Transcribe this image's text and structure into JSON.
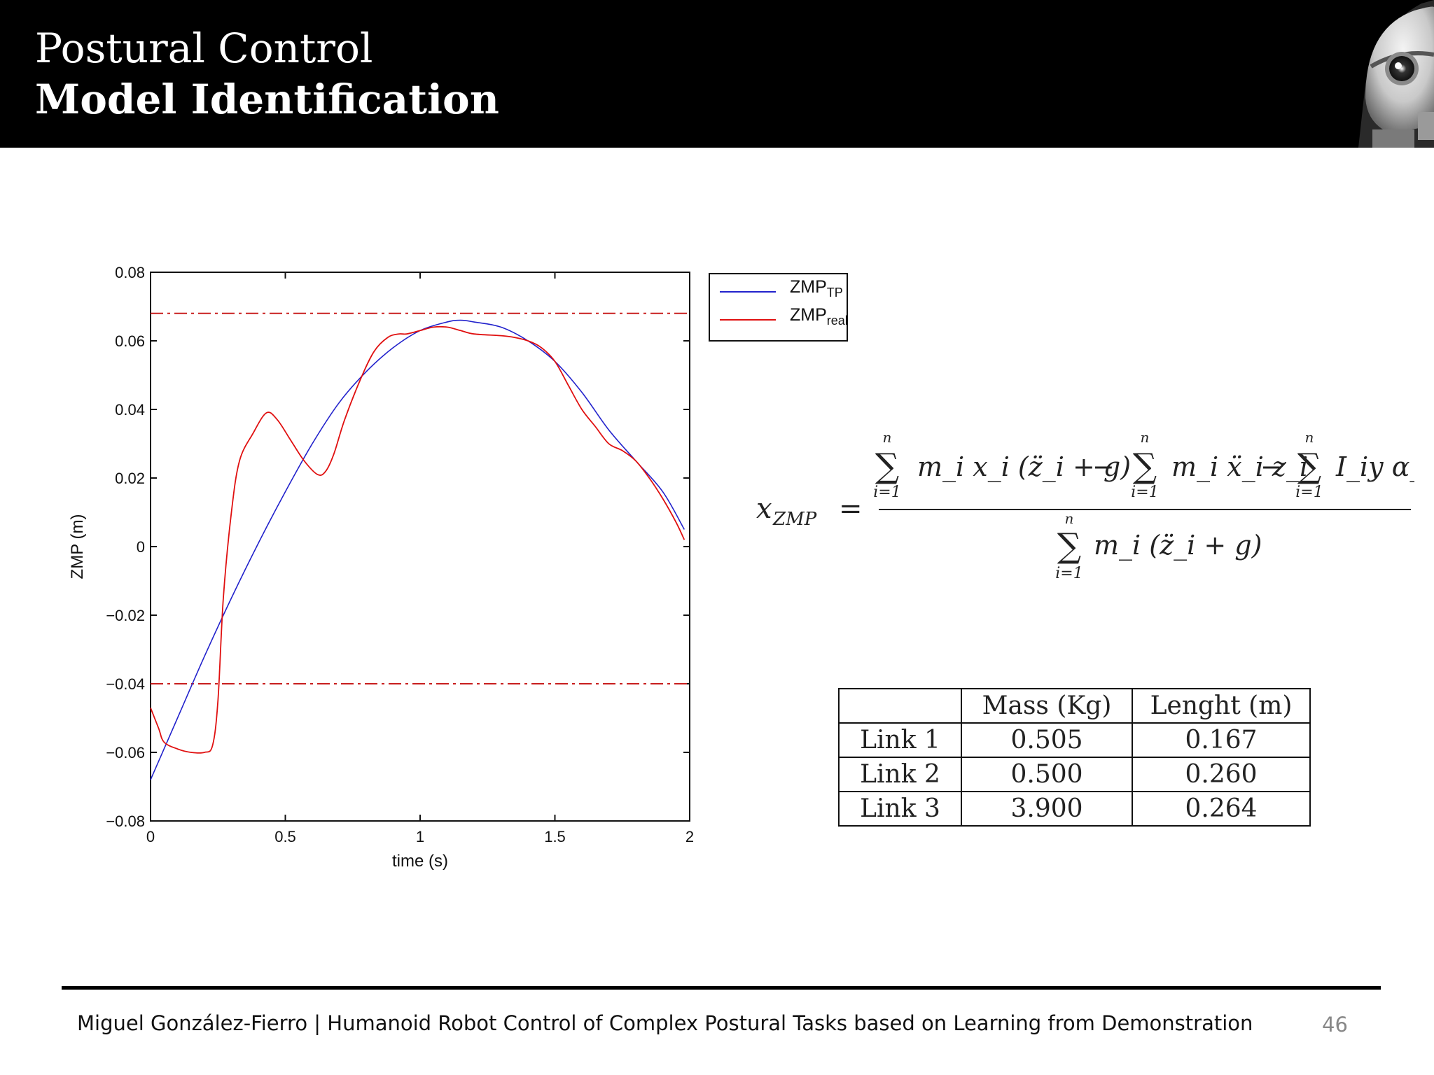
{
  "slide": {
    "title": "Postural Control",
    "subtitle": "Model Identification",
    "page_number": "46"
  },
  "footer": {
    "author": "Miguel González-Fierro",
    "separator": "|",
    "thesis_title": "Humanoid Robot Control of Complex Postural Tasks based on Learning from Demonstration"
  },
  "chart_data": {
    "type": "line",
    "xlabel": "time (s)",
    "ylabel": "ZMP (m)",
    "xlim": [
      0,
      2
    ],
    "ylim": [
      -0.08,
      0.08
    ],
    "x_ticks": [
      "0",
      "0.5",
      "1",
      "1.5",
      "2"
    ],
    "y_ticks": [
      "0.08",
      "0.06",
      "0.04",
      "0.02",
      "0",
      "−0.02",
      "−0.04",
      "−0.06",
      "−0.08"
    ],
    "grid": false,
    "legend_position": "outside top-right",
    "legend": [
      {
        "name": "ZMP",
        "subscript": "TP",
        "color": "#2222cc"
      },
      {
        "name": "ZMP",
        "subscript": "real",
        "color": "#e01010"
      }
    ],
    "series": [
      {
        "name": "ZMP_TP",
        "color": "#2222cc",
        "x": [
          0,
          0.1,
          0.2,
          0.3,
          0.4,
          0.5,
          0.6,
          0.7,
          0.8,
          0.9,
          1.0,
          1.1,
          1.15,
          1.2,
          1.3,
          1.4,
          1.5,
          1.6,
          1.7,
          1.8,
          1.9,
          1.98
        ],
        "y": [
          -0.068,
          -0.05,
          -0.032,
          -0.015,
          0.001,
          0.016,
          0.03,
          0.042,
          0.051,
          0.058,
          0.063,
          0.0655,
          0.066,
          0.0655,
          0.064,
          0.06,
          0.054,
          0.045,
          0.034,
          0.025,
          0.016,
          0.005
        ]
      },
      {
        "name": "ZMP_real",
        "color": "#e01010",
        "x": [
          0,
          0.03,
          0.05,
          0.1,
          0.15,
          0.2,
          0.23,
          0.25,
          0.27,
          0.3,
          0.33,
          0.38,
          0.43,
          0.47,
          0.52,
          0.57,
          0.62,
          0.65,
          0.68,
          0.72,
          0.78,
          0.83,
          0.88,
          0.92,
          0.95,
          1.0,
          1.05,
          1.1,
          1.15,
          1.2,
          1.3,
          1.35,
          1.4,
          1.45,
          1.5,
          1.55,
          1.6,
          1.65,
          1.7,
          1.75,
          1.8,
          1.85,
          1.9,
          1.95,
          1.98
        ],
        "y": [
          -0.047,
          -0.053,
          -0.057,
          -0.059,
          -0.06,
          -0.06,
          -0.058,
          -0.045,
          -0.015,
          0.01,
          0.025,
          0.033,
          0.039,
          0.037,
          0.031,
          0.025,
          0.021,
          0.022,
          0.027,
          0.037,
          0.049,
          0.057,
          0.061,
          0.062,
          0.062,
          0.063,
          0.064,
          0.064,
          0.063,
          0.062,
          0.0615,
          0.061,
          0.06,
          0.058,
          0.054,
          0.047,
          0.04,
          0.035,
          0.03,
          0.028,
          0.025,
          0.02,
          0.014,
          0.007,
          0.002
        ]
      }
    ],
    "reference_lines": [
      {
        "y": 0.068,
        "style": "dash-dot",
        "color": "#c81e1e"
      },
      {
        "y": -0.04,
        "style": "dash-dot",
        "color": "#c81e1e"
      }
    ]
  },
  "equation": {
    "lhs": "x",
    "lhs_subscript": "ZMP",
    "equals": "=",
    "numerator_terms": [
      "m_i x_i (z̈_i + g)",
      "−",
      "m_i ẍ_i z_i",
      "−",
      "I_iy α_iy"
    ],
    "denominator_term": "m_i (z̈_i + g)",
    "sum_upper": "n",
    "sum_lower": "i=1"
  },
  "table": {
    "headers": [
      "",
      "Mass (Kg)",
      "Lenght (m)"
    ],
    "rows": [
      [
        "Link 1",
        "0.505",
        "0.167"
      ],
      [
        "Link 2",
        "0.500",
        "0.260"
      ],
      [
        "Link 3",
        "3.900",
        "0.264"
      ]
    ]
  }
}
